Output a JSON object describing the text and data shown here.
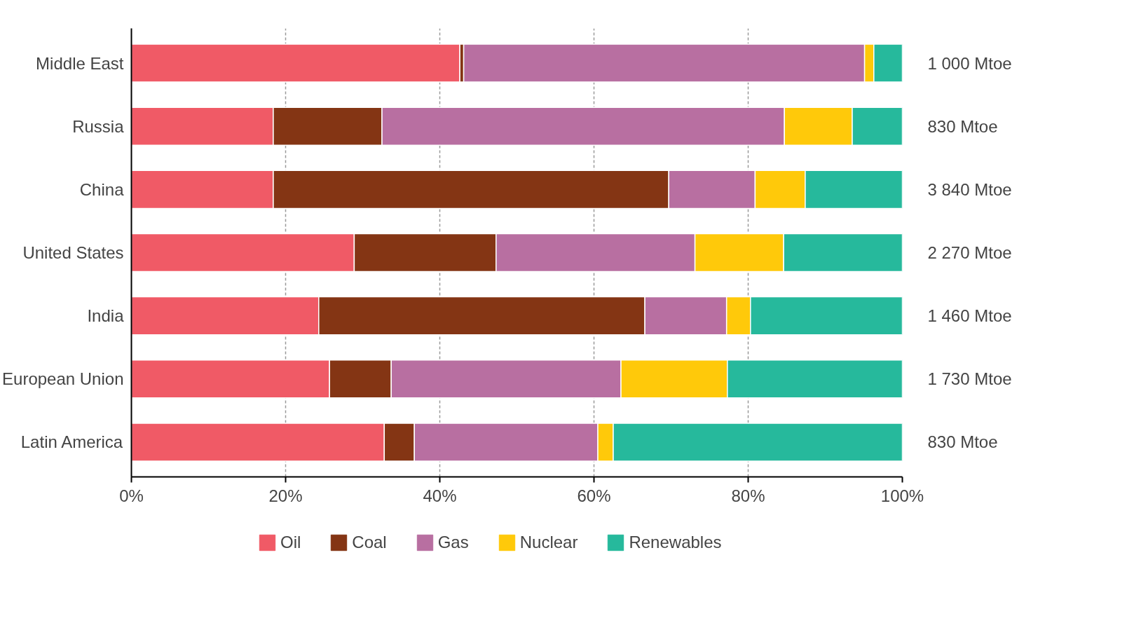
{
  "chart_data": {
    "type": "bar",
    "orientation": "horizontal",
    "stacked": true,
    "categories": [
      "Middle East",
      "Russia",
      "China",
      "United States",
      "India",
      "European Union",
      "Latin America"
    ],
    "series": [
      {
        "name": "Oil",
        "color": "#f05a66",
        "values": [
          42.6,
          18.4,
          18.4,
          28.9,
          24.3,
          25.7,
          32.8
        ]
      },
      {
        "name": "Coal",
        "color": "#843514",
        "values": [
          0.5,
          14.1,
          51.3,
          18.4,
          42.3,
          8.0,
          3.9
        ]
      },
      {
        "name": "Gas",
        "color": "#b86fa1",
        "values": [
          52.0,
          52.2,
          11.2,
          25.8,
          10.6,
          29.8,
          23.8
        ]
      },
      {
        "name": "Nuclear",
        "color": "#ffc90a",
        "values": [
          1.2,
          8.8,
          6.5,
          11.5,
          3.1,
          13.8,
          2.0
        ]
      },
      {
        "name": "Renewables",
        "color": "#26b99c",
        "values": [
          3.7,
          6.5,
          12.6,
          15.4,
          19.7,
          22.7,
          37.5
        ]
      }
    ],
    "annotations": [
      "1 000 Mtoe",
      "830 Mtoe",
      "3 840 Mtoe",
      "2 270 Mtoe",
      "1 460 Mtoe",
      "1 730 Mtoe",
      "830 Mtoe"
    ],
    "xlim": [
      0,
      100
    ],
    "xticks": [
      {
        "value": 0,
        "label": "0%"
      },
      {
        "value": 20,
        "label": "20%"
      },
      {
        "value": 40,
        "label": "40%"
      },
      {
        "value": 60,
        "label": "60%"
      },
      {
        "value": 80,
        "label": "80%"
      },
      {
        "value": 100,
        "label": "100%"
      }
    ],
    "grid": "x",
    "legend": "bottom"
  }
}
